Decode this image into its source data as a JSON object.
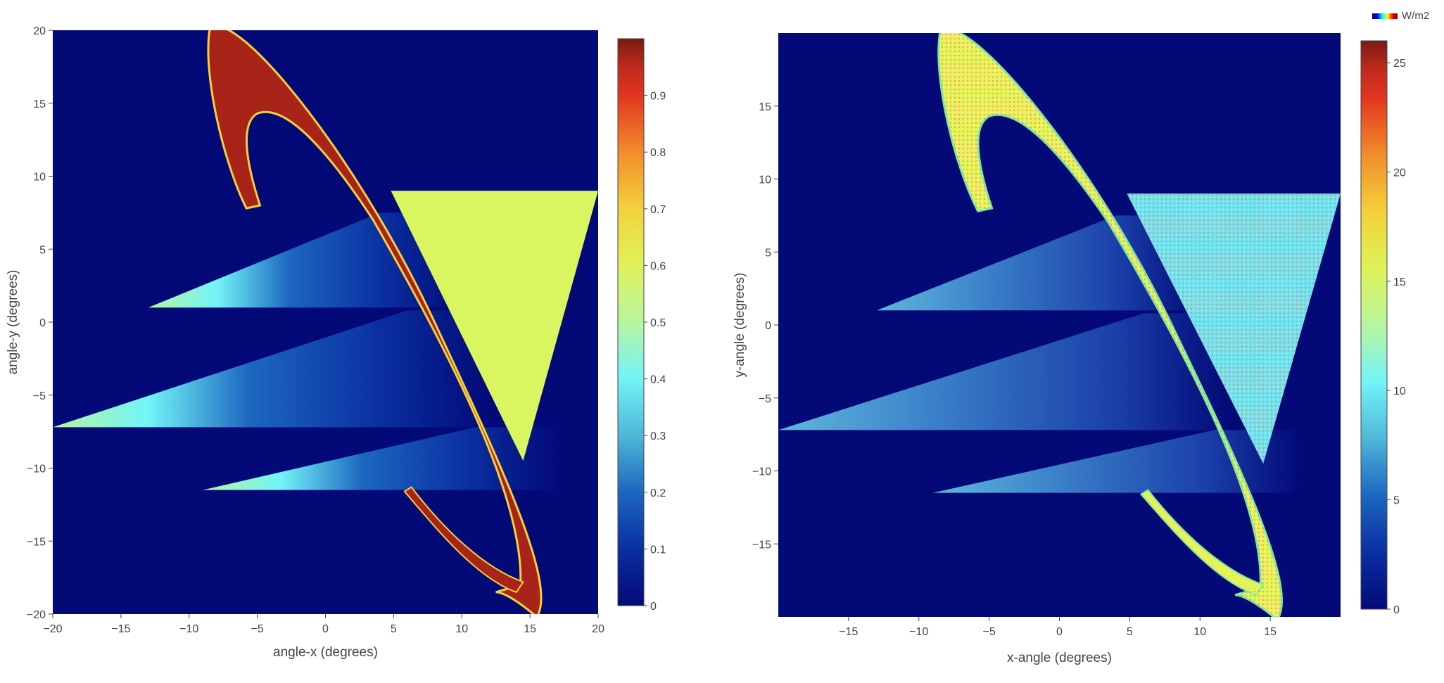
{
  "colorscale": [
    "#030a78",
    "#0a2fa0",
    "#1c67c0",
    "#4fb7d8",
    "#72f4f8",
    "#b8f5a0",
    "#dff25a",
    "#f3d13a",
    "#f28c2c",
    "#e0361f",
    "#c02a1c",
    "#7a1a10"
  ],
  "colors": {
    "background": "#030a78",
    "high": "#a82418",
    "triangle_left": "#d9f660",
    "triangle_right": "#6fe4ef",
    "ring_right": "#e6f25a"
  },
  "legend": {
    "label": "W/m2",
    "icon": "colorscale-icon"
  },
  "chart_data": [
    {
      "type": "heatmap",
      "title": "",
      "xlabel": "angle-x (degrees)",
      "ylabel": "angle-y (degrees)",
      "xlim": [
        -20,
        20
      ],
      "ylim": [
        -20,
        20
      ],
      "xticks": [
        "−20",
        "−15",
        "−10",
        "−5",
        "0",
        "5",
        "10",
        "15",
        "20"
      ],
      "xtick_values": [
        -20,
        -15,
        -10,
        -5,
        0,
        5,
        10,
        15,
        20
      ],
      "yticks": [
        "20",
        "15",
        "10",
        "5",
        "0",
        "−5",
        "−10",
        "−15",
        "−20"
      ],
      "ytick_values": [
        20,
        15,
        10,
        5,
        0,
        -5,
        -10,
        -15,
        -20
      ],
      "colorbar": {
        "min": 0,
        "max": 1,
        "ticks": [
          "0.9",
          "0.8",
          "0.7",
          "0.6",
          "0.5",
          "0.4",
          "0.3",
          "0.2",
          "0.1",
          "0"
        ],
        "tick_values": [
          0.9,
          0.8,
          0.7,
          0.6,
          0.5,
          0.4,
          0.3,
          0.2,
          0.1,
          0
        ]
      },
      "regions": [
        {
          "name": "crescent",
          "value": 0.95
        },
        {
          "name": "inverted-triangle",
          "value": 0.6,
          "vertices": [
            [
              4.8,
              9
            ],
            [
              20,
              9
            ],
            [
              14.5,
              -9.5
            ]
          ]
        },
        {
          "name": "wedge-top",
          "apex": [
            -13,
            1
          ],
          "value_range": [
            0.5,
            0.02
          ],
          "y_top": 7.5
        },
        {
          "name": "wedge-middle",
          "apex": [
            -20,
            -7.2
          ],
          "value_range": [
            0.55,
            0.02
          ],
          "y_top": 0.8
        },
        {
          "name": "wedge-bottom",
          "apex": [
            -9,
            -11.5
          ],
          "value_range": [
            0.5,
            0.02
          ],
          "y_top": -7.2
        }
      ]
    },
    {
      "type": "heatmap",
      "title": "",
      "xlabel": "x-angle (degrees)",
      "ylabel": "y-angle (degrees)",
      "xlim": [
        -20,
        20
      ],
      "ylim": [
        -20,
        20
      ],
      "xticks": [
        "−15",
        "−10",
        "−5",
        "0",
        "5",
        "10",
        "15"
      ],
      "xtick_values": [
        -15,
        -10,
        -5,
        0,
        5,
        10,
        15
      ],
      "yticks": [
        "15",
        "10",
        "5",
        "0",
        "−5",
        "−10",
        "−15"
      ],
      "ytick_values": [
        15,
        10,
        5,
        0,
        -5,
        -10,
        -15
      ],
      "colorbar": {
        "min": 0,
        "max": 26,
        "ticks": [
          "25",
          "20",
          "15",
          "10",
          "5",
          "0"
        ],
        "tick_values": [
          25,
          20,
          15,
          10,
          5,
          0
        ]
      },
      "regions": [
        {
          "name": "crescent",
          "value": 16
        },
        {
          "name": "inverted-triangle",
          "value": 10,
          "vertices": [
            [
              4.8,
              9
            ],
            [
              20,
              9
            ],
            [
              14.5,
              -9.5
            ]
          ]
        },
        {
          "name": "wedge-top",
          "apex": [
            -13,
            1
          ],
          "value_range": [
            8,
            2
          ]
        },
        {
          "name": "wedge-middle",
          "apex": [
            -20,
            -7.2
          ],
          "value_range": [
            8,
            2
          ]
        },
        {
          "name": "wedge-bottom",
          "apex": [
            -9,
            -11.5
          ],
          "value_range": [
            8,
            2
          ]
        }
      ]
    }
  ]
}
